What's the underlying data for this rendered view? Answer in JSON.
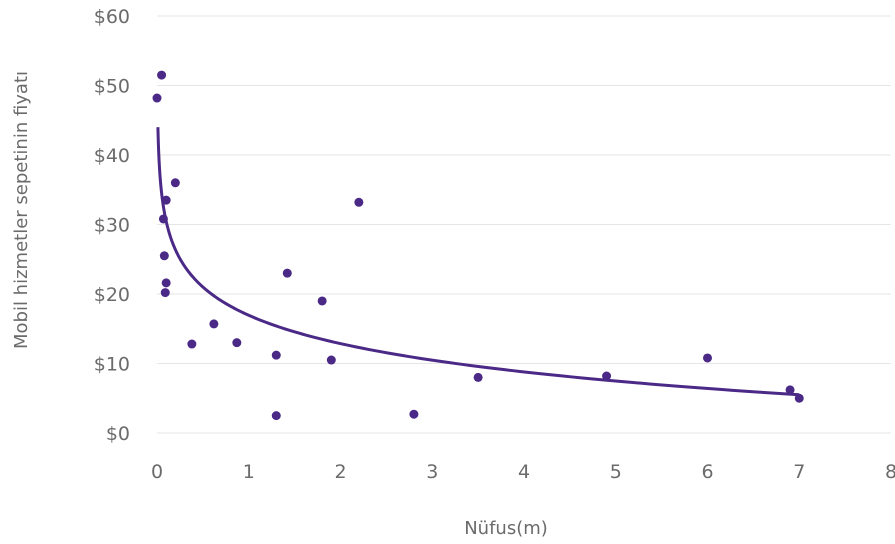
{
  "chart_data": {
    "type": "scatter",
    "xlabel": "Nüfus(m)",
    "ylabel": "Mobil hizmetler sepetinin fiyatı",
    "xlim": [
      0,
      8
    ],
    "ylim": [
      0,
      60
    ],
    "x_ticks": [
      "0",
      "1",
      "2",
      "3",
      "4",
      "5",
      "6",
      "7",
      "8"
    ],
    "y_ticks": [
      "$0",
      "$10",
      "$20",
      "$30",
      "$40",
      "$50",
      "$60"
    ],
    "grid": "horizontal",
    "color": "#4b2a87",
    "points": [
      {
        "x": 0.0,
        "y": 48.2
      },
      {
        "x": 0.05,
        "y": 51.5
      },
      {
        "x": 0.07,
        "y": 30.8
      },
      {
        "x": 0.1,
        "y": 33.5
      },
      {
        "x": 0.08,
        "y": 25.5
      },
      {
        "x": 0.1,
        "y": 21.6
      },
      {
        "x": 0.09,
        "y": 20.2
      },
      {
        "x": 0.2,
        "y": 36.0
      },
      {
        "x": 0.38,
        "y": 12.8
      },
      {
        "x": 0.62,
        "y": 15.7
      },
      {
        "x": 0.87,
        "y": 13.0
      },
      {
        "x": 1.3,
        "y": 11.2
      },
      {
        "x": 1.3,
        "y": 2.5
      },
      {
        "x": 1.42,
        "y": 23.0
      },
      {
        "x": 1.8,
        "y": 19.0
      },
      {
        "x": 1.9,
        "y": 10.5
      },
      {
        "x": 2.2,
        "y": 33.2
      },
      {
        "x": 2.8,
        "y": 2.7
      },
      {
        "x": 3.5,
        "y": 8.0
      },
      {
        "x": 4.9,
        "y": 8.2
      },
      {
        "x": 6.0,
        "y": 10.8
      },
      {
        "x": 6.9,
        "y": 6.2
      },
      {
        "x": 7.0,
        "y": 5.0
      }
    ],
    "trendline": {
      "type": "logarithmic",
      "x_range": [
        0.01,
        7.0
      ],
      "y_start": 44.0,
      "y_end": 5.5
    }
  }
}
